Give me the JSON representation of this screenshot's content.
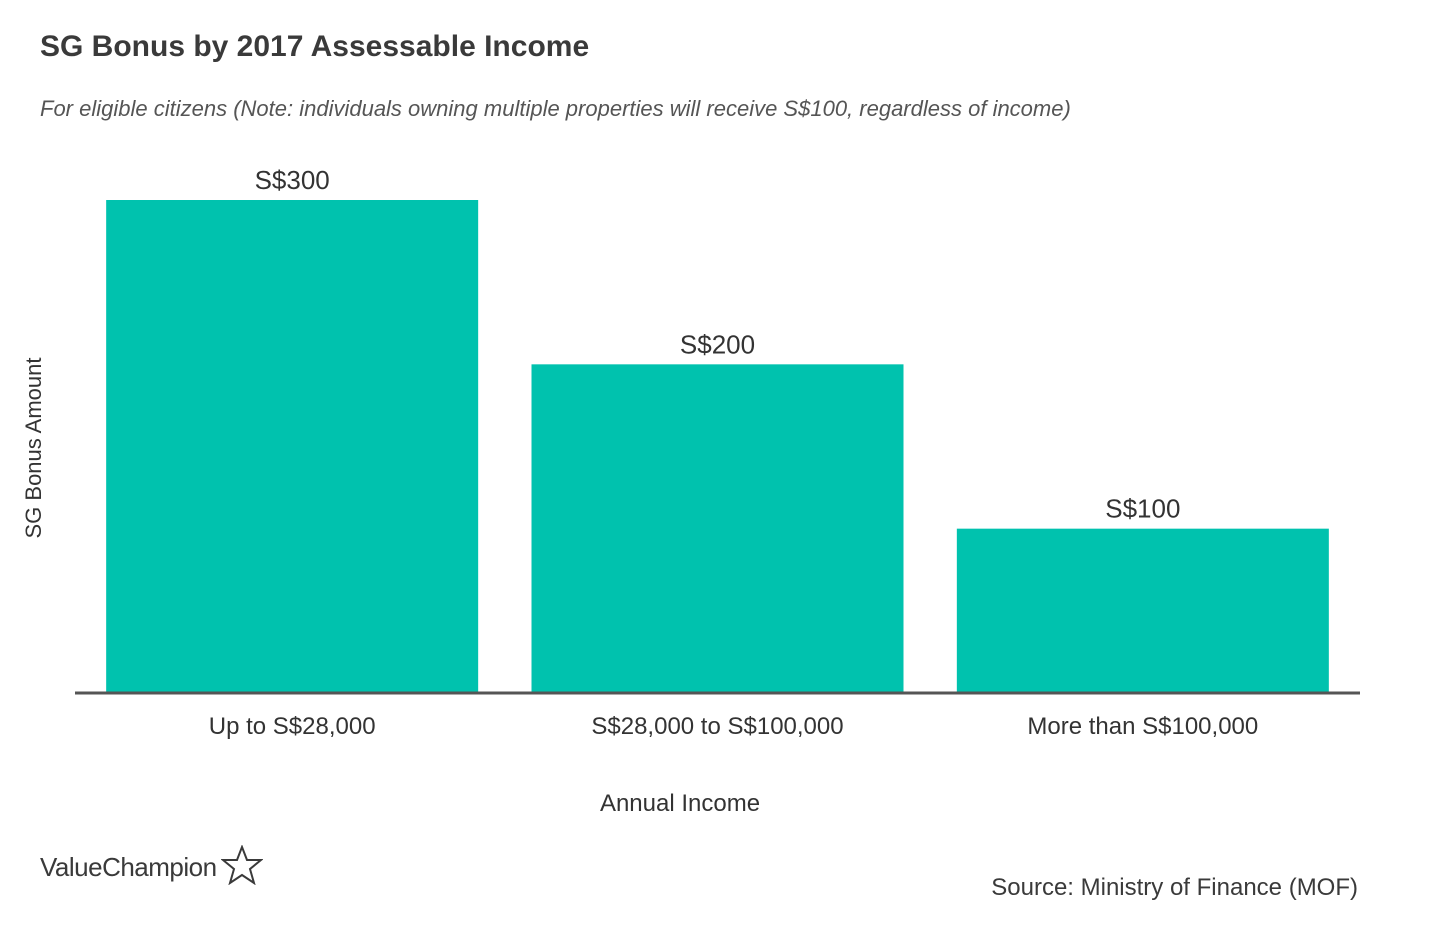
{
  "title": "SG Bonus by 2017 Assessable Income",
  "subtitle": "For eligible citizens (Note: individuals owning multiple properties will receive S$100, regardless of income)",
  "source": "Source: Ministry of Finance (MOF)",
  "brand": {
    "name": "ValueChampion",
    "icon": "star-outline-icon"
  },
  "colors": {
    "bar": "#00c2ae",
    "axis": "#555555"
  },
  "chart_data": {
    "type": "bar",
    "categories": [
      "Up to S$28,000",
      "S$28,000 to S$100,000",
      "More than S$100,000"
    ],
    "values": [
      300,
      200,
      100
    ],
    "data_labels": [
      "S$300",
      "S$200",
      "S$100"
    ],
    "xlabel": "Annual Income",
    "ylabel": "SG Bonus Amount",
    "ylim": [
      0,
      300
    ],
    "grid": false,
    "legend": "none"
  }
}
